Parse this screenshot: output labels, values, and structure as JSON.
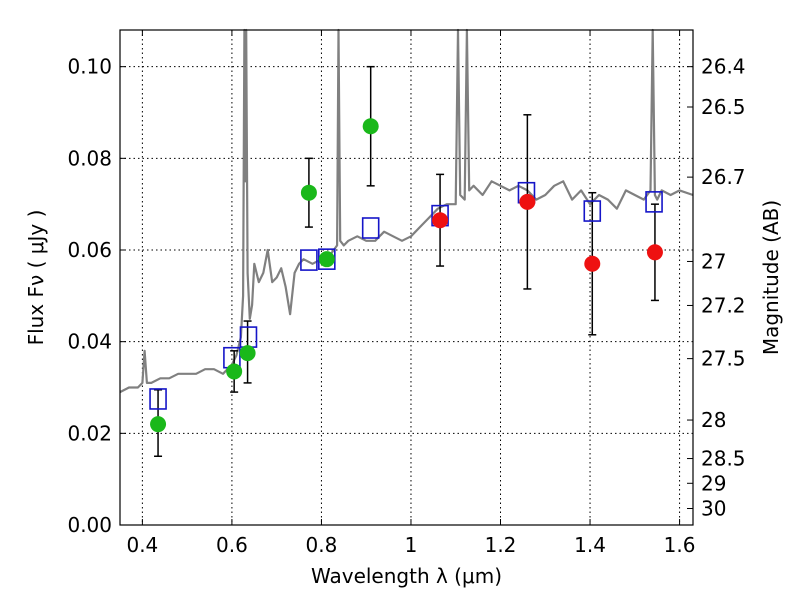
{
  "chart_data": {
    "type": "scatter",
    "xlabel": "Wavelength  λ (μm)",
    "ylabel": "Flux  Fν  ( μJy )",
    "y2label": "Magnitude (AB)",
    "xlim": [
      0.35,
      1.63
    ],
    "ylim": [
      0.0,
      0.108
    ],
    "grid": true,
    "x_ticks": [
      0.4,
      0.6,
      0.8,
      1.0,
      1.2,
      1.4,
      1.6
    ],
    "x_tick_labels": [
      "0.4",
      "0.6",
      "0.8",
      "1",
      "1.2",
      "1.4",
      "1.6"
    ],
    "y_ticks": [
      0.0,
      0.02,
      0.04,
      0.06,
      0.08,
      0.1
    ],
    "y_tick_labels": [
      "0.00",
      "0.02",
      "0.04",
      "0.06",
      "0.08",
      "0.10"
    ],
    "y2_ticks": [
      {
        "label": "26.4",
        "flux": 0.1
      },
      {
        "label": "26.5",
        "flux": 0.0912
      },
      {
        "label": "26.7",
        "flux": 0.0759
      },
      {
        "label": "27",
        "flux": 0.0575
      },
      {
        "label": "27.2",
        "flux": 0.0479
      },
      {
        "label": "27.5",
        "flux": 0.0363
      },
      {
        "label": "28",
        "flux": 0.0229
      },
      {
        "label": "28.5",
        "flux": 0.0145
      },
      {
        "label": "29",
        "flux": 0.0091
      },
      {
        "label": "30",
        "flux": 0.0036
      }
    ],
    "colors": {
      "spectrum": "#808080",
      "green_points": "#1ab81a",
      "red_points": "#ee1111",
      "model_squares": "#1515c8",
      "error_bars": "#000000"
    },
    "series": [
      {
        "kind": "spectrum",
        "x": [
          0.35,
          0.37,
          0.39,
          0.4,
          0.405,
          0.41,
          0.42,
          0.44,
          0.46,
          0.48,
          0.5,
          0.52,
          0.54,
          0.56,
          0.58,
          0.6,
          0.61,
          0.62,
          0.625,
          0.628,
          0.63,
          0.632,
          0.635,
          0.64,
          0.645,
          0.65,
          0.66,
          0.67,
          0.68,
          0.69,
          0.7,
          0.71,
          0.72,
          0.73,
          0.74,
          0.75,
          0.76,
          0.78,
          0.8,
          0.82,
          0.835,
          0.838,
          0.842,
          0.85,
          0.86,
          0.88,
          0.9,
          0.92,
          0.94,
          0.96,
          0.98,
          1.0,
          1.02,
          1.04,
          1.06,
          1.08,
          1.1,
          1.105,
          1.11,
          1.12,
          1.125,
          1.13,
          1.14,
          1.16,
          1.18,
          1.2,
          1.22,
          1.24,
          1.26,
          1.28,
          1.3,
          1.32,
          1.34,
          1.36,
          1.38,
          1.4,
          1.42,
          1.44,
          1.46,
          1.48,
          1.5,
          1.52,
          1.535,
          1.54,
          1.545,
          1.55,
          1.56,
          1.58,
          1.6,
          1.63
        ],
        "y": [
          0.029,
          0.03,
          0.03,
          0.031,
          0.038,
          0.031,
          0.031,
          0.032,
          0.032,
          0.033,
          0.033,
          0.033,
          0.034,
          0.034,
          0.033,
          0.035,
          0.037,
          0.041,
          0.05,
          0.108,
          0.075,
          0.108,
          0.055,
          0.045,
          0.048,
          0.057,
          0.053,
          0.055,
          0.06,
          0.053,
          0.054,
          0.056,
          0.052,
          0.046,
          0.055,
          0.057,
          0.058,
          0.057,
          0.058,
          0.059,
          0.061,
          0.108,
          0.062,
          0.061,
          0.062,
          0.063,
          0.062,
          0.062,
          0.064,
          0.063,
          0.062,
          0.063,
          0.065,
          0.067,
          0.069,
          0.07,
          0.07,
          0.108,
          0.072,
          0.071,
          0.108,
          0.073,
          0.074,
          0.072,
          0.075,
          0.074,
          0.073,
          0.074,
          0.073,
          0.071,
          0.072,
          0.074,
          0.075,
          0.071,
          0.073,
          0.07,
          0.072,
          0.071,
          0.069,
          0.073,
          0.072,
          0.071,
          0.073,
          0.108,
          0.072,
          0.071,
          0.073,
          0.072,
          0.073,
          0.072
        ]
      },
      {
        "kind": "observed",
        "color": "green",
        "points": [
          {
            "x": 0.435,
            "y": 0.022,
            "err_lo": 0.015,
            "err_hi": 0.0295
          },
          {
            "x": 0.605,
            "y": 0.0335,
            "err_lo": 0.029,
            "err_hi": 0.038
          },
          {
            "x": 0.635,
            "y": 0.0375,
            "err_lo": 0.031,
            "err_hi": 0.0445
          },
          {
            "x": 0.772,
            "y": 0.0725,
            "err_lo": 0.065,
            "err_hi": 0.08
          },
          {
            "x": 0.812,
            "y": 0.058,
            "err_lo": null,
            "err_hi": null
          },
          {
            "x": 0.91,
            "y": 0.087,
            "err_lo": 0.074,
            "err_hi": 0.1
          }
        ]
      },
      {
        "kind": "observed",
        "color": "red",
        "points": [
          {
            "x": 1.065,
            "y": 0.0665,
            "err_lo": 0.0565,
            "err_hi": 0.0765
          },
          {
            "x": 1.26,
            "y": 0.0705,
            "err_lo": 0.0515,
            "err_hi": 0.0895
          },
          {
            "x": 1.405,
            "y": 0.057,
            "err_lo": 0.0415,
            "err_hi": 0.0725
          },
          {
            "x": 1.545,
            "y": 0.0595,
            "err_lo": 0.049,
            "err_hi": 0.07
          }
        ]
      },
      {
        "kind": "model",
        "marker": "open-square",
        "points": [
          {
            "x": 0.435,
            "y": 0.0275
          },
          {
            "x": 0.6,
            "y": 0.0365
          },
          {
            "x": 0.637,
            "y": 0.041
          },
          {
            "x": 0.772,
            "y": 0.0578
          },
          {
            "x": 0.812,
            "y": 0.058
          },
          {
            "x": 0.91,
            "y": 0.0648
          },
          {
            "x": 1.065,
            "y": 0.0675
          },
          {
            "x": 1.258,
            "y": 0.0725
          },
          {
            "x": 1.405,
            "y": 0.0685
          },
          {
            "x": 1.543,
            "y": 0.0705
          }
        ]
      }
    ]
  }
}
